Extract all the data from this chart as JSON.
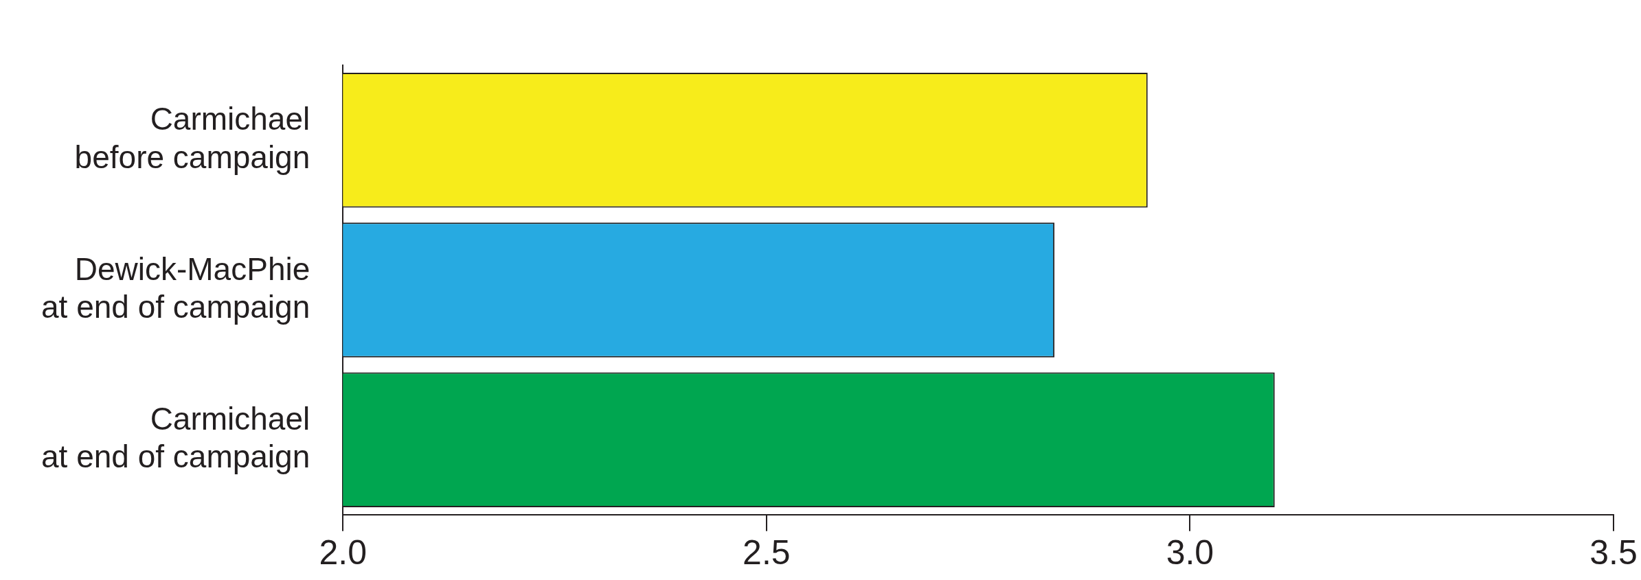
{
  "chart_data": {
    "type": "bar",
    "orientation": "horizontal",
    "categories": [
      "Carmichael\nbefore campaign",
      "Dewick-MacPhie\nat end of campaign",
      "Carmichael\nat end of campaign"
    ],
    "values": [
      2.95,
      2.84,
      3.1
    ],
    "colors": [
      "#f7ec1b",
      "#27aae1",
      "#00a650"
    ],
    "xlim": [
      2.0,
      3.5
    ],
    "xticks": [
      {
        "value": 2,
        "label": "2.0"
      },
      {
        "value": 2.5,
        "label": "2.5"
      },
      {
        "value": 3,
        "label": "3.0"
      },
      {
        "value": 3.5,
        "label": "3.5"
      }
    ],
    "grid": false,
    "legend": false
  }
}
